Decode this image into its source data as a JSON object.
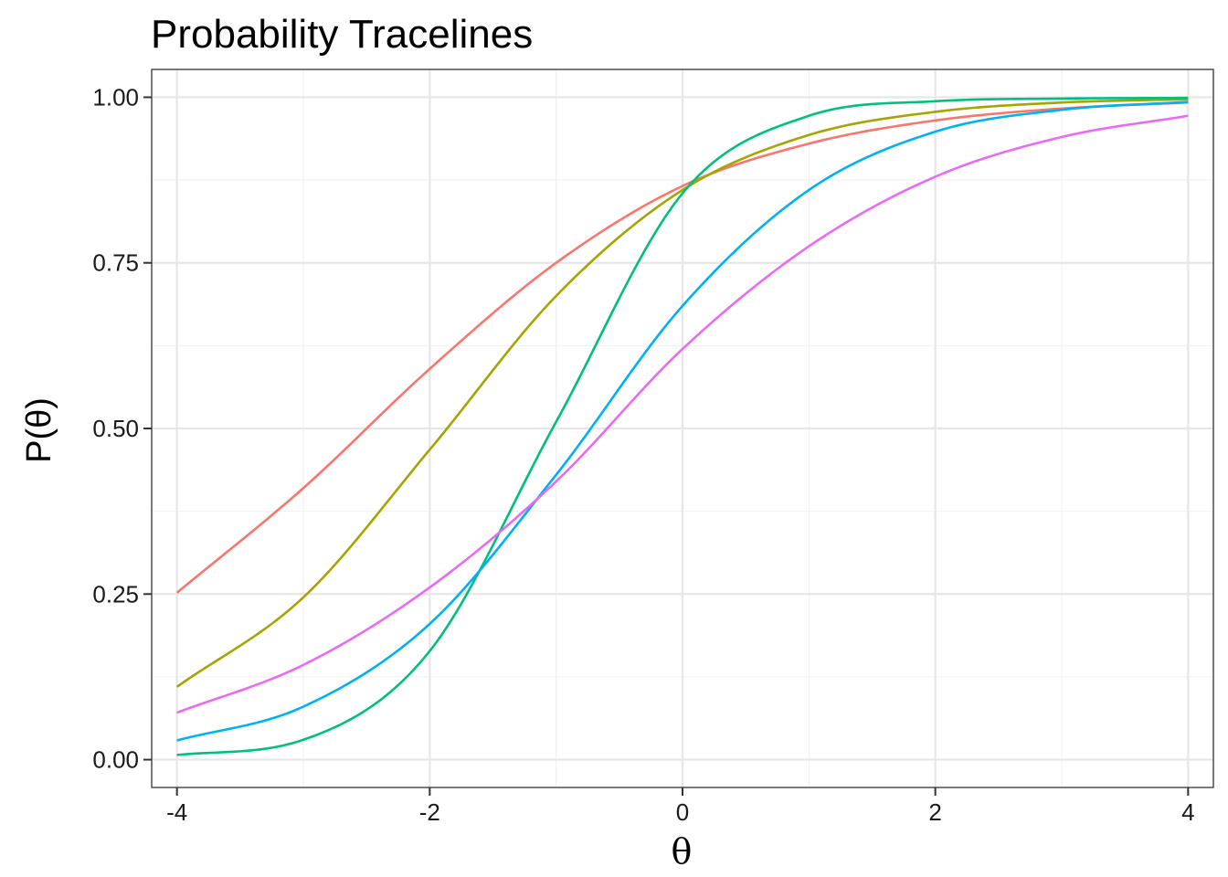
{
  "chart_data": {
    "type": "line",
    "title": "Probability Tracelines",
    "xlabel": "θ",
    "ylabel": "P(θ)",
    "xlim": [
      -4.2,
      4.2
    ],
    "ylim": [
      -0.042,
      1.042
    ],
    "x_ticks": [
      -4,
      -2,
      0,
      2,
      4
    ],
    "x_tick_labels": [
      "-4",
      "-2",
      "0",
      "2",
      "4"
    ],
    "x_minor_ticks": [
      -3,
      -1,
      1,
      3
    ],
    "y_ticks": [
      0,
      0.25,
      0.5,
      0.75,
      1
    ],
    "y_tick_labels": [
      "0.00",
      "0.25",
      "0.50",
      "0.75",
      "1.00"
    ],
    "y_minor_ticks": [
      0.125,
      0.375,
      0.625,
      0.875
    ],
    "grid": true,
    "legend": "none",
    "x": [
      -4,
      -3,
      -2,
      -1,
      0,
      1,
      2,
      3,
      4
    ],
    "series": [
      {
        "color": "#F8766D",
        "values": [
          0.252,
          0.41,
          0.59,
          0.75,
          0.866,
          0.93,
          0.965,
          0.983,
          0.992
        ]
      },
      {
        "color": "#A3A500",
        "values": [
          0.11,
          0.245,
          0.468,
          0.7,
          0.86,
          0.943,
          0.978,
          0.992,
          0.997
        ]
      },
      {
        "color": "#00BF7D",
        "values": [
          0.007,
          0.03,
          0.164,
          0.51,
          0.855,
          0.972,
          0.994,
          0.998,
          0.999
        ]
      },
      {
        "color": "#00B0F6",
        "values": [
          0.029,
          0.08,
          0.205,
          0.43,
          0.685,
          0.86,
          0.948,
          0.981,
          0.993
        ]
      },
      {
        "color": "#E76BF3",
        "values": [
          0.071,
          0.143,
          0.26,
          0.42,
          0.62,
          0.775,
          0.88,
          0.94,
          0.972
        ]
      }
    ]
  }
}
